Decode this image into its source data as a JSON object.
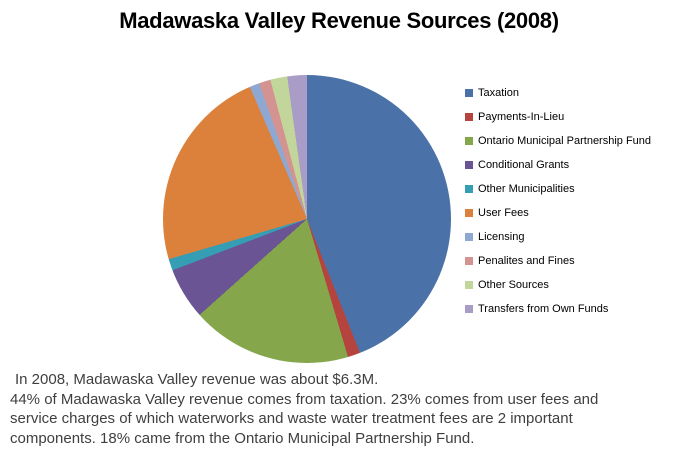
{
  "title": "Madawaska Valley Revenue Sources (2008)",
  "chart_data": {
    "type": "pie",
    "title": "Madawaska Valley Revenue Sources (2008)",
    "unit": "percent",
    "start_angle_deg": 0,
    "direction": "clockwise",
    "legend_position": "right",
    "series": [
      {
        "label": "Taxation",
        "value": 44,
        "color": "#4A72A8"
      },
      {
        "label": "Payments-In-Lieu",
        "value": 1.4,
        "color": "#B5443F"
      },
      {
        "label": "Ontario Municipal Partnership Fund",
        "value": 18,
        "color": "#85A64B"
      },
      {
        "label": "Conditional Grants",
        "value": 5.8,
        "color": "#6A5494"
      },
      {
        "label": "Other Municipalities",
        "value": 1.3,
        "color": "#369EB4"
      },
      {
        "label": "User Fees",
        "value": 23,
        "color": "#DB813C"
      },
      {
        "label": "Licensing",
        "value": 1.1,
        "color": "#8FA8D2"
      },
      {
        "label": "Penalites and Fines",
        "value": 1.3,
        "color": "#D49390"
      },
      {
        "label": "Other Sources",
        "value": 1.9,
        "color": "#C2D59B"
      },
      {
        "label": "Transfers from Own Funds",
        "value": 2.2,
        "color": "#A99CC6"
      }
    ]
  },
  "description": {
    "lines": [
      "In 2008, Madawaska Valley revenue was about $6.3M.",
      "44% of Madawaska Valley revenue comes from taxation. 23% comes from user fees and",
      "service charges of which waterworks and waste water treatment fees are 2 important",
      "components. 18% came from the Ontario Municipal Partnership Fund."
    ]
  }
}
